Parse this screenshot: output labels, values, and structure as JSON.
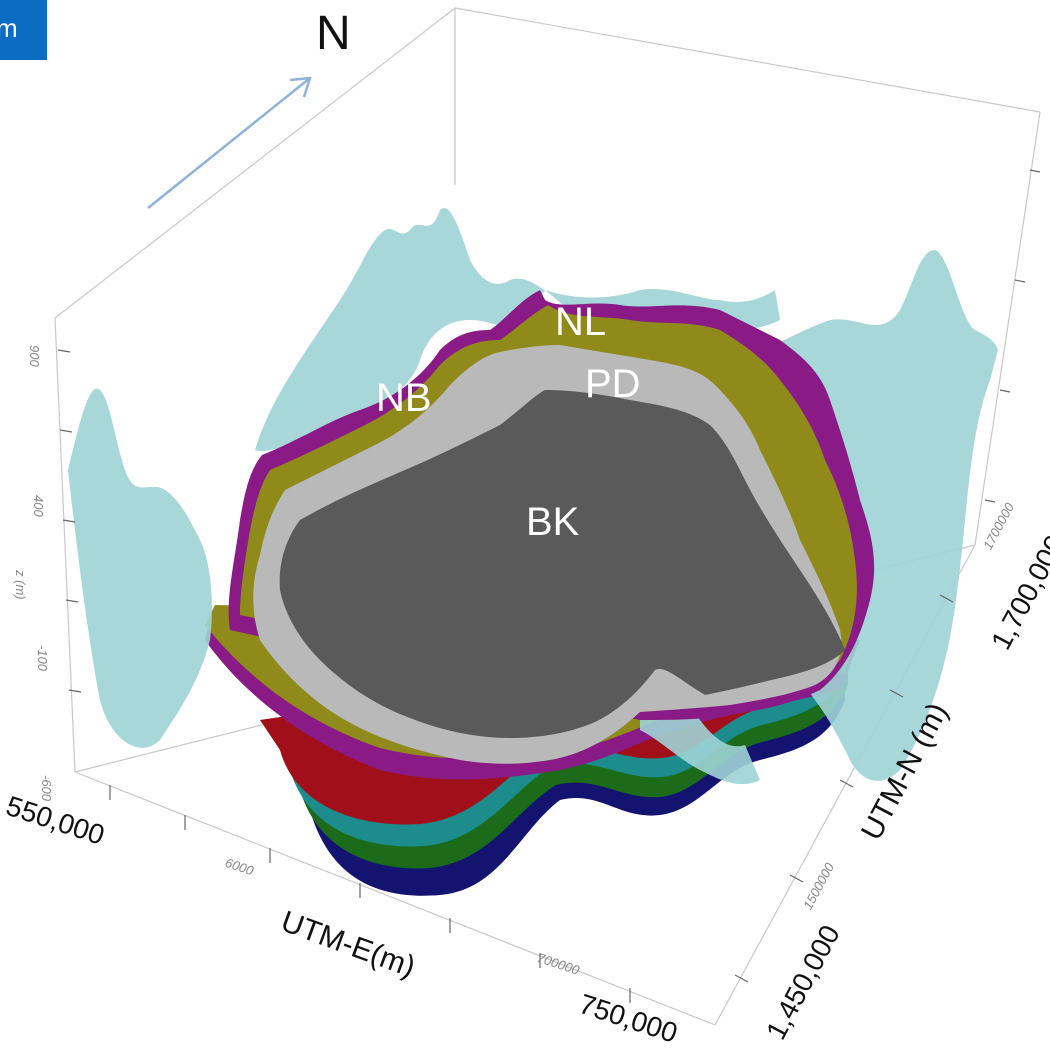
{
  "corner_badge": "m",
  "north_label": "N",
  "zones": {
    "nl": "NL",
    "pd": "PD",
    "nb": "NB",
    "bk": "BK"
  },
  "axes": {
    "x_title": "UTM-E(m)",
    "y_title": "UTM-N (m)",
    "z_title": "z (m)",
    "x_min": "550,000",
    "x_max": "750,000",
    "x_mid_small": "6000",
    "x_small": "700000",
    "y_min": "1,450,000",
    "y_max": "1,700,000",
    "y_small": "1500000",
    "y_small_top": "1700000",
    "z_ticks": [
      "900",
      "400",
      "-100",
      "-600"
    ]
  },
  "colors": {
    "terrain": "#9fd3d6",
    "olive": "#8f8a1a",
    "purple": "#8a1a86",
    "lightgray": "#b9b9b9",
    "darkgray": "#5a5a5a",
    "red": "#a10f1a",
    "teal": "#1c8c8c",
    "green": "#1b6b1b",
    "navy": "#141470",
    "arrow": "#8fb3d6"
  }
}
